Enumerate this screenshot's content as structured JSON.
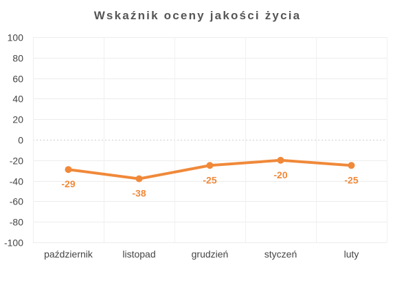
{
  "chart_data": {
    "type": "line",
    "title": "Wskaźnik oceny jakości życia",
    "categories": [
      "październik",
      "listopad",
      "grudzień",
      "styczeń",
      "luty"
    ],
    "series": [
      {
        "values": [
          -29,
          -38,
          -25,
          -20,
          -25
        ],
        "color": "#f0893a"
      }
    ],
    "data_labels": [
      "-29",
      "-38",
      "-25",
      "-20",
      "-25"
    ],
    "ylim": [
      -100,
      100
    ],
    "yticks": [
      100,
      80,
      60,
      40,
      20,
      0,
      -20,
      -40,
      -60,
      -80,
      -100
    ],
    "ytick_labels": [
      "100",
      "80",
      "60",
      "40",
      "20",
      "0",
      "-20",
      "-40",
      "-60",
      "-80",
      "-100"
    ],
    "grid": true,
    "zero_line": "dotted",
    "legend": "none"
  }
}
